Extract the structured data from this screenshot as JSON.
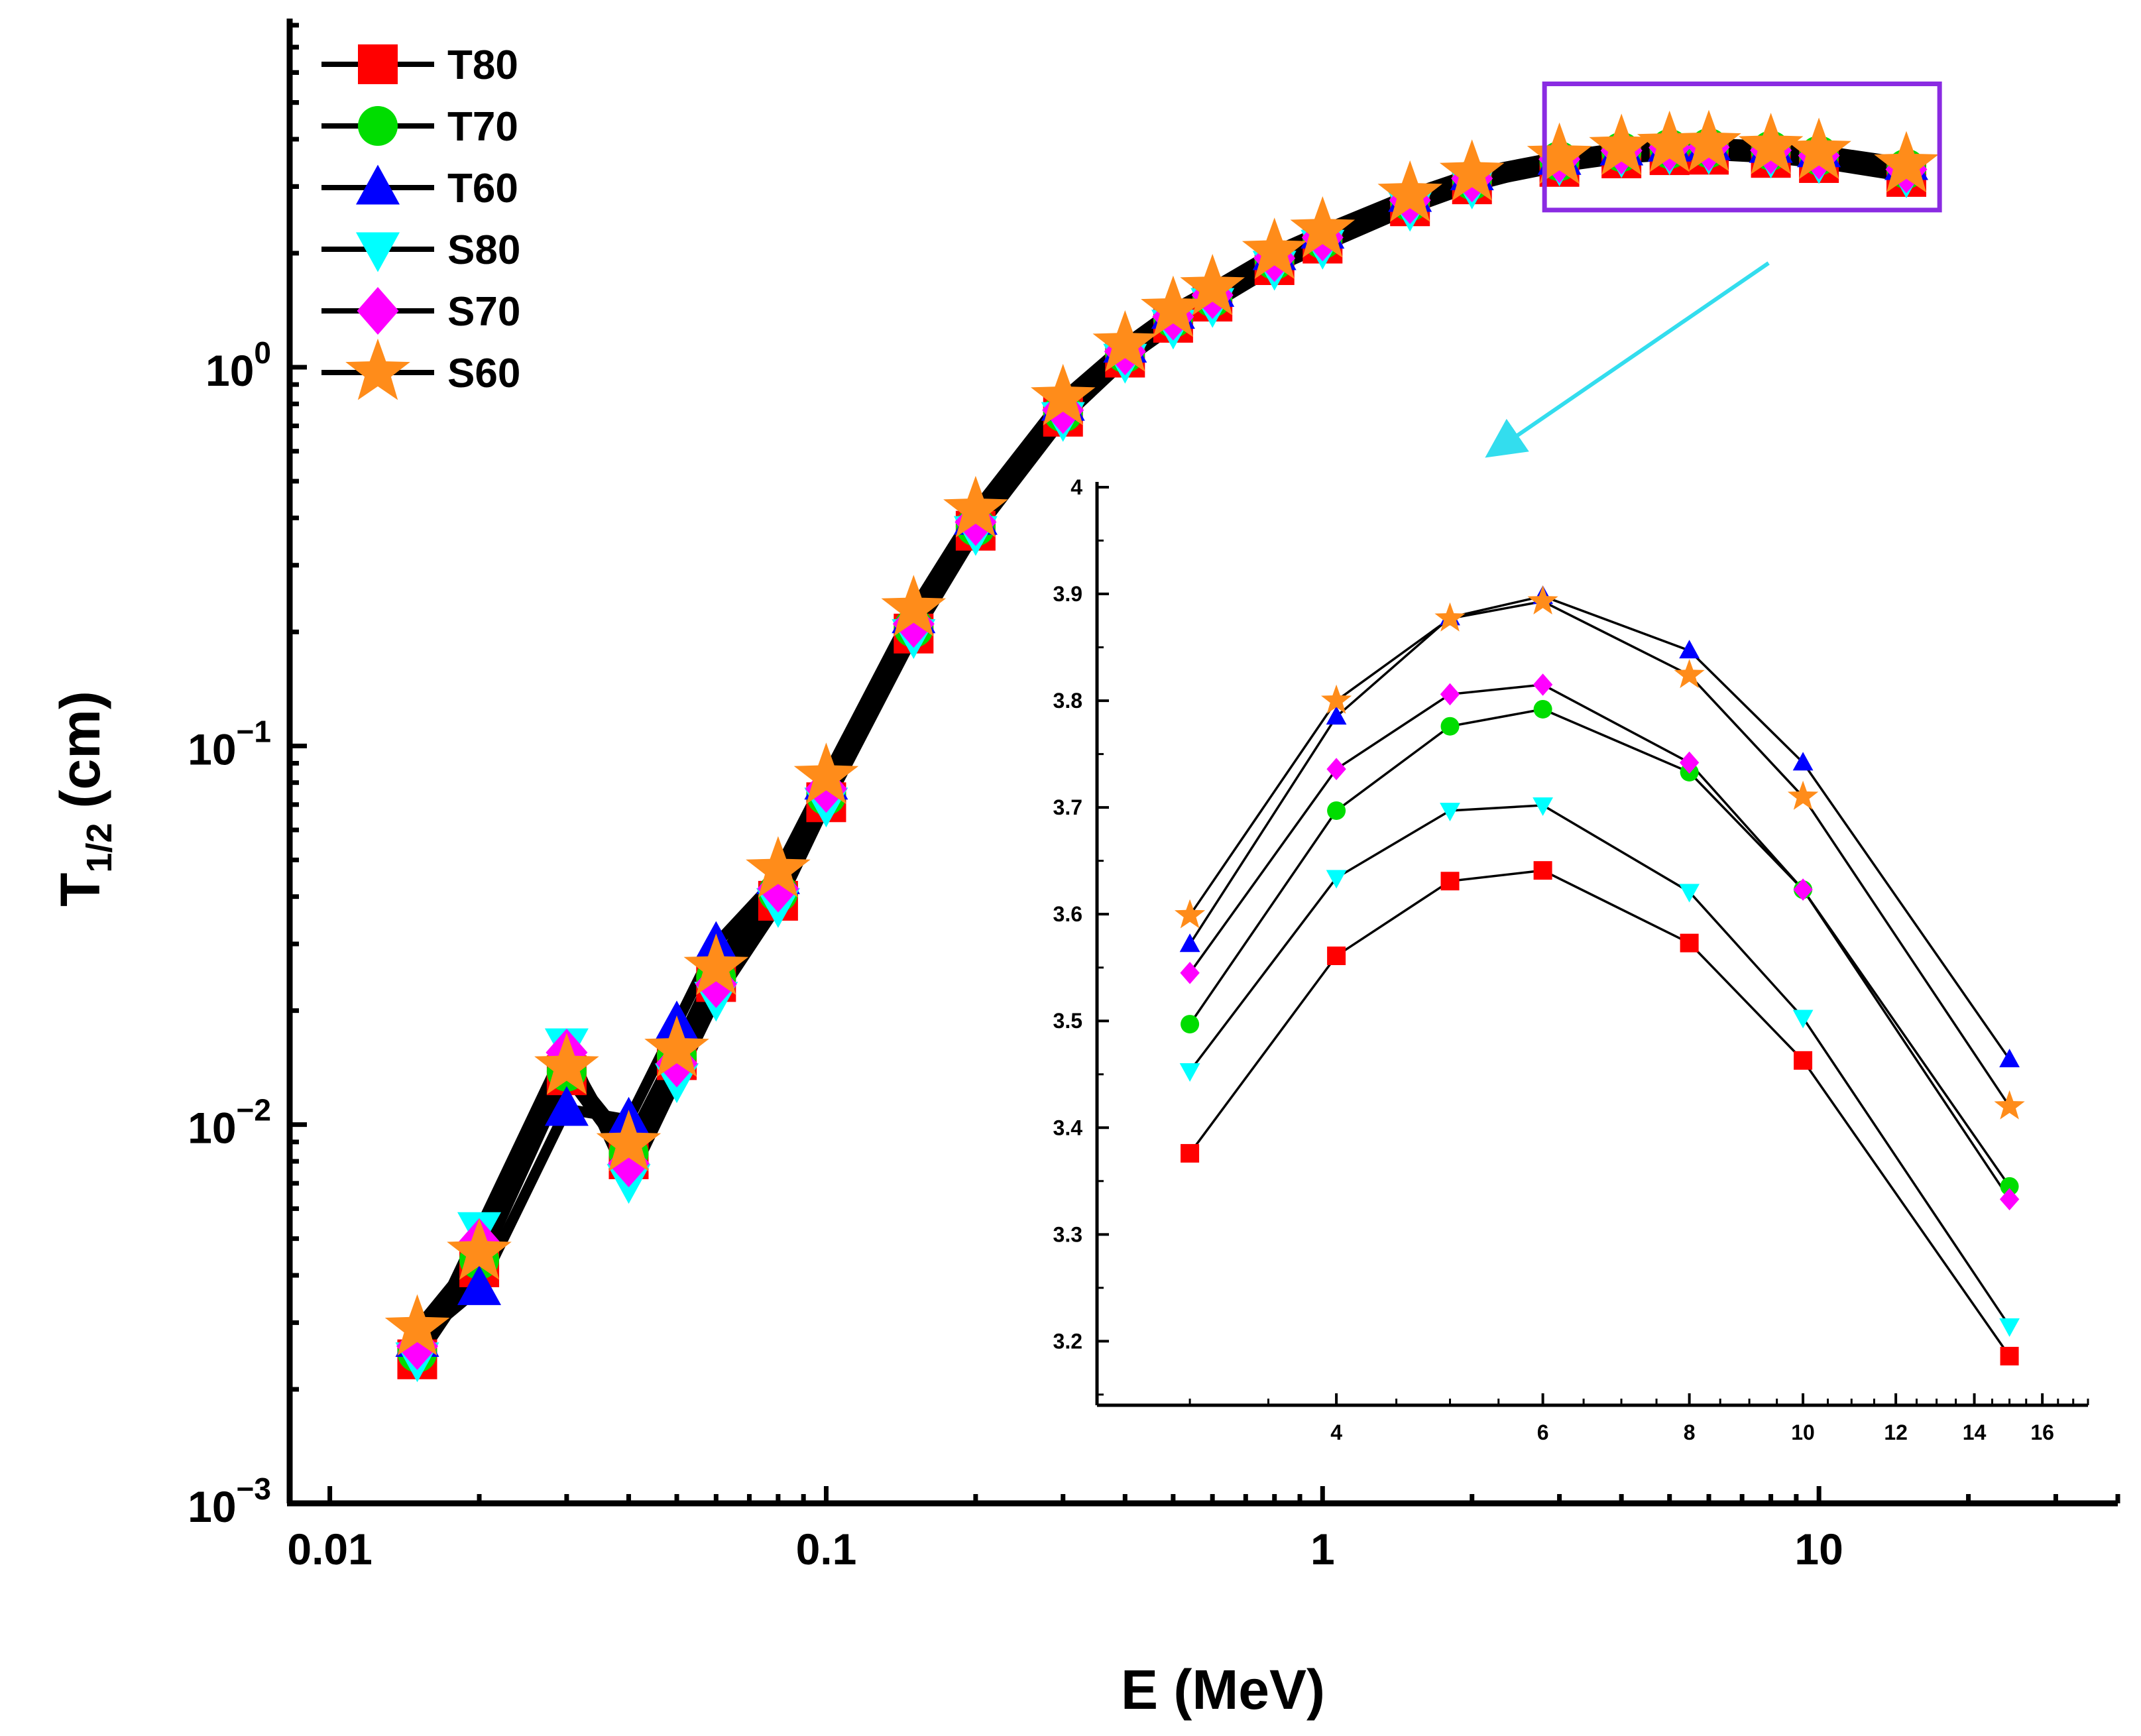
{
  "chart_data": [
    {
      "type": "line",
      "role": "main",
      "xlabel": "E (MeV)",
      "ylabel_base": "T",
      "ylabel_sub": "1/2",
      "ylabel_unit": "(cm)",
      "x_scale": "log",
      "y_scale": "log",
      "xlim": [
        0.0083,
        40
      ],
      "ylim": [
        0.001,
        8
      ],
      "x_ticks": [
        {
          "value": 0.01,
          "label": "0.01"
        },
        {
          "value": 0.1,
          "label": "0.1"
        },
        {
          "value": 1,
          "label": "1"
        },
        {
          "value": 10,
          "label": "10"
        }
      ],
      "y_ticks": [
        {
          "value": 0.001,
          "base": "10",
          "exp": "−3"
        },
        {
          "value": 0.01,
          "base": "10",
          "exp": "−2"
        },
        {
          "value": 0.1,
          "base": "10",
          "exp": "−1"
        },
        {
          "value": 1,
          "base": "10",
          "exp": "0"
        }
      ],
      "legend_position": "top-left",
      "x": [
        0.015,
        0.02,
        0.03,
        0.04,
        0.05,
        0.06,
        0.08,
        0.1,
        0.15,
        0.2,
        0.3,
        0.4,
        0.5,
        0.6,
        0.8,
        1,
        1.5,
        2,
        3,
        4,
        5,
        6,
        8,
        10,
        15
      ],
      "series": [
        {
          "name": "T80",
          "color": "#ff0000",
          "marker": "square",
          "values": [
            0.0024,
            0.0042,
            0.0135,
            0.0081,
            0.0148,
            0.0238,
            0.039,
            0.071,
            0.198,
            0.37,
            0.74,
            1.06,
            1.31,
            1.49,
            1.86,
            2.12,
            2.66,
            3.04,
            3.38,
            3.56,
            3.63,
            3.64,
            3.57,
            3.46,
            3.18
          ]
        },
        {
          "name": "T70",
          "color": "#00dd00",
          "marker": "circle",
          "values": [
            0.0025,
            0.0044,
            0.0138,
            0.0084,
            0.0152,
            0.0245,
            0.041,
            0.074,
            0.205,
            0.38,
            0.76,
            1.09,
            1.35,
            1.53,
            1.92,
            2.18,
            2.74,
            3.12,
            3.5,
            3.7,
            3.77,
            3.79,
            3.73,
            3.62,
            3.34
          ]
        },
        {
          "name": "T60",
          "color": "#0000ff",
          "marker": "triangle-up",
          "values": [
            0.0027,
            0.0037,
            0.011,
            0.0103,
            0.0185,
            0.03,
            0.045,
            0.08,
            0.22,
            0.4,
            0.8,
            1.14,
            1.4,
            1.6,
            2.0,
            2.28,
            2.85,
            3.25,
            3.57,
            3.78,
            3.87,
            3.9,
            3.84,
            3.74,
            3.46
          ]
        },
        {
          "name": "S80",
          "color": "#00ffff",
          "marker": "triangle-down",
          "values": [
            0.0024,
            0.0053,
            0.0162,
            0.0071,
            0.0131,
            0.0215,
            0.038,
            0.07,
            0.195,
            0.365,
            0.73,
            1.04,
            1.28,
            1.46,
            1.83,
            2.08,
            2.62,
            3.0,
            3.45,
            3.63,
            3.69,
            3.7,
            3.62,
            3.5,
            3.21
          ]
        },
        {
          "name": "S70",
          "color": "#ff00ff",
          "marker": "diamond",
          "values": [
            0.0026,
            0.0049,
            0.0155,
            0.0079,
            0.0145,
            0.0235,
            0.042,
            0.077,
            0.21,
            0.39,
            0.77,
            1.1,
            1.36,
            1.55,
            1.94,
            2.2,
            2.76,
            3.15,
            3.54,
            3.73,
            3.8,
            3.81,
            3.74,
            3.62,
            3.33
          ]
        },
        {
          "name": "S60",
          "color": "#ff8c1a",
          "marker": "star",
          "values": [
            0.0029,
            0.0046,
            0.0142,
            0.0089,
            0.0158,
            0.026,
            0.047,
            0.083,
            0.23,
            0.42,
            0.83,
            1.15,
            1.42,
            1.62,
            2.02,
            2.3,
            2.86,
            3.25,
            3.6,
            3.8,
            3.87,
            3.89,
            3.82,
            3.71,
            3.42
          ]
        }
      ]
    },
    {
      "type": "line",
      "role": "inset",
      "xlabel": "",
      "ylabel": "",
      "x_scale": "log",
      "y_scale": "linear",
      "xlim": [
        2.5,
        17.5
      ],
      "ylim": [
        3.14,
        4.0
      ],
      "x_ticks": [
        {
          "value": 4,
          "label": "4"
        },
        {
          "value": 6,
          "label": "6"
        },
        {
          "value": 8,
          "label": "8"
        },
        {
          "value": 10,
          "label": "10"
        },
        {
          "value": 12,
          "label": "12"
        },
        {
          "value": 14,
          "label": "14"
        },
        {
          "value": 16,
          "label": "16"
        }
      ],
      "y_ticks": [
        {
          "value": 3.2,
          "label": "3.2"
        },
        {
          "value": 3.3,
          "label": "3.3"
        },
        {
          "value": 3.4,
          "label": "3.4"
        },
        {
          "value": 3.5,
          "label": "3.5"
        },
        {
          "value": 3.6,
          "label": "3.6"
        },
        {
          "value": 3.7,
          "label": "3.7"
        },
        {
          "value": 3.8,
          "label": "3.8"
        },
        {
          "value": 3.9,
          "label": "3.9"
        },
        {
          "value": 4.0,
          "label": "4"
        }
      ],
      "x": [
        3,
        4,
        5,
        6,
        8,
        10,
        15
      ],
      "series": [
        {
          "name": "T80",
          "color": "#ff0000",
          "marker": "square",
          "values": [
            3.376,
            3.561,
            3.631,
            3.641,
            3.573,
            3.463,
            3.186
          ]
        },
        {
          "name": "T70",
          "color": "#00dd00",
          "marker": "circle",
          "values": [
            3.497,
            3.697,
            3.776,
            3.792,
            3.733,
            3.623,
            3.345
          ]
        },
        {
          "name": "T60",
          "color": "#0000ff",
          "marker": "triangle-up",
          "values": [
            3.572,
            3.785,
            3.878,
            3.898,
            3.847,
            3.742,
            3.464
          ]
        },
        {
          "name": "S80",
          "color": "#00ffff",
          "marker": "triangle-down",
          "values": [
            3.453,
            3.634,
            3.697,
            3.702,
            3.621,
            3.503,
            3.214
          ]
        },
        {
          "name": "S70",
          "color": "#ff00ff",
          "marker": "diamond",
          "values": [
            3.545,
            3.736,
            3.806,
            3.815,
            3.742,
            3.623,
            3.333
          ]
        },
        {
          "name": "S60",
          "color": "#ff8c1a",
          "marker": "star",
          "values": [
            3.599,
            3.8,
            3.877,
            3.893,
            3.824,
            3.71,
            3.42
          ]
        }
      ]
    }
  ],
  "highlight_box": {
    "color": "#8a2be2",
    "x_range": [
      2.8,
      17.5
    ],
    "y_range": [
      2.6,
      5.6
    ]
  },
  "arrow": {
    "color": "#33ddee"
  }
}
